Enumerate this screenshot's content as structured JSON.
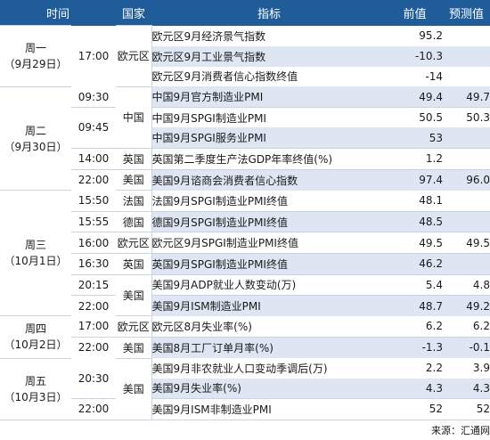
{
  "headers": {
    "time": "时间",
    "country": "国家",
    "indicator": "指标",
    "previous": "前值",
    "forecast": "预测值"
  },
  "rows": [
    {
      "day": "周一\n（9月29日）",
      "daySpan": 3,
      "time": "17:00",
      "timeSpan": 3,
      "country": "欧元区",
      "countrySpan": 3,
      "indicator": "欧元区9月经济景气指数",
      "previous": "95.2",
      "forecast": "",
      "shade": false,
      "divider": false
    },
    {
      "indicator": "欧元区9月工业景气指数",
      "previous": "-10.3",
      "forecast": "",
      "shade": true,
      "divider": false
    },
    {
      "indicator": "欧元区9月消费者信心指数终值",
      "previous": "-14",
      "forecast": "",
      "shade": false,
      "divider": false
    },
    {
      "day": "周二\n（9月30日）",
      "daySpan": 5,
      "time": "09:30",
      "timeSpan": 1,
      "country": "中国",
      "countrySpan": 3,
      "indicator": "中国9月官方制造业PMI",
      "previous": "49.4",
      "forecast": "49.7",
      "shade": true,
      "divider": false
    },
    {
      "time": "09:45",
      "timeSpan": 2,
      "indicator": "中国9月SPGI制造业PMI",
      "previous": "50.5",
      "forecast": "50.3",
      "shade": false,
      "divider": true
    },
    {
      "indicator": "中国9月SPGI服务业PMI",
      "previous": "53",
      "forecast": "",
      "shade": true,
      "divider": false
    },
    {
      "time": "14:00",
      "timeSpan": 1,
      "country": "英国",
      "countrySpan": 1,
      "indicator": "英国第二季度生产法GDP年率终值(%)",
      "previous": "1.2",
      "forecast": "",
      "shade": false,
      "divider": true
    },
    {
      "time": "22:00",
      "timeSpan": 1,
      "country": "美国",
      "countrySpan": 1,
      "indicator": "美国9月谘商会消费者信心指数",
      "previous": "97.4",
      "forecast": "96.0",
      "shade": true,
      "divider": true
    },
    {
      "day": "周三\n（10月1日）",
      "daySpan": 6,
      "time": "15:50",
      "timeSpan": 1,
      "country": "法国",
      "countrySpan": 1,
      "indicator": "法国9月SPGI制造业PMI终值",
      "previous": "48.1",
      "forecast": "",
      "shade": false,
      "divider": false
    },
    {
      "time": "15:55",
      "timeSpan": 1,
      "country": "德国",
      "countrySpan": 1,
      "indicator": "德国9月SPGI制造业PMI终值",
      "previous": "48.5",
      "forecast": "",
      "shade": true,
      "divider": true
    },
    {
      "time": "16:00",
      "timeSpan": 1,
      "country": "欧元区",
      "countrySpan": 1,
      "indicator": "欧元区9月SPGI制造业PMI终值",
      "previous": "49.5",
      "forecast": "49.5",
      "shade": false,
      "divider": true
    },
    {
      "time": "16:30",
      "timeSpan": 1,
      "country": "英国",
      "countrySpan": 1,
      "indicator": "英国9月SPGI制造业PMI终值",
      "previous": "46.2",
      "forecast": "",
      "shade": true,
      "divider": true
    },
    {
      "time": "20:15",
      "timeSpan": 1,
      "country": "美国",
      "countrySpan": 2,
      "indicator": "美国9月ADP就业人数变动(万)",
      "previous": "5.4",
      "forecast": "4.8",
      "shade": false,
      "divider": true
    },
    {
      "time": "22:00",
      "timeSpan": 1,
      "indicator": "美国9月ISM制造业PMI",
      "previous": "48.7",
      "forecast": "49.2",
      "shade": true,
      "divider": true
    },
    {
      "day": "周四\n（10月2日）",
      "daySpan": 2,
      "time": "17:00",
      "timeSpan": 1,
      "country": "欧元区",
      "countrySpan": 1,
      "indicator": "欧元区8月失业率(%)",
      "previous": "6.2",
      "forecast": "6.2",
      "shade": false,
      "divider": false
    },
    {
      "time": "22:00",
      "timeSpan": 1,
      "country": "美国",
      "countrySpan": 1,
      "indicator": "美国8月工厂订单月率(%)",
      "previous": "-1.3",
      "forecast": "-0.1",
      "shade": true,
      "divider": true
    },
    {
      "day": "周五\n（10月3日）",
      "daySpan": 3,
      "time": "20:30",
      "timeSpan": 2,
      "country": "美国",
      "countrySpan": 3,
      "indicator": "美国9月非农就业人口变动季调后(万)",
      "previous": "2.2",
      "forecast": "3.9",
      "shade": false,
      "divider": false
    },
    {
      "indicator": "美国9月失业率(%)",
      "previous": "4.3",
      "forecast": "4.3",
      "shade": true,
      "divider": false
    },
    {
      "time": "22:00",
      "timeSpan": 1,
      "indicator": "美国9月ISM非制造业PMI",
      "previous": "52",
      "forecast": "52",
      "shade": false,
      "divider": true
    }
  ],
  "source": "来源：汇通网"
}
